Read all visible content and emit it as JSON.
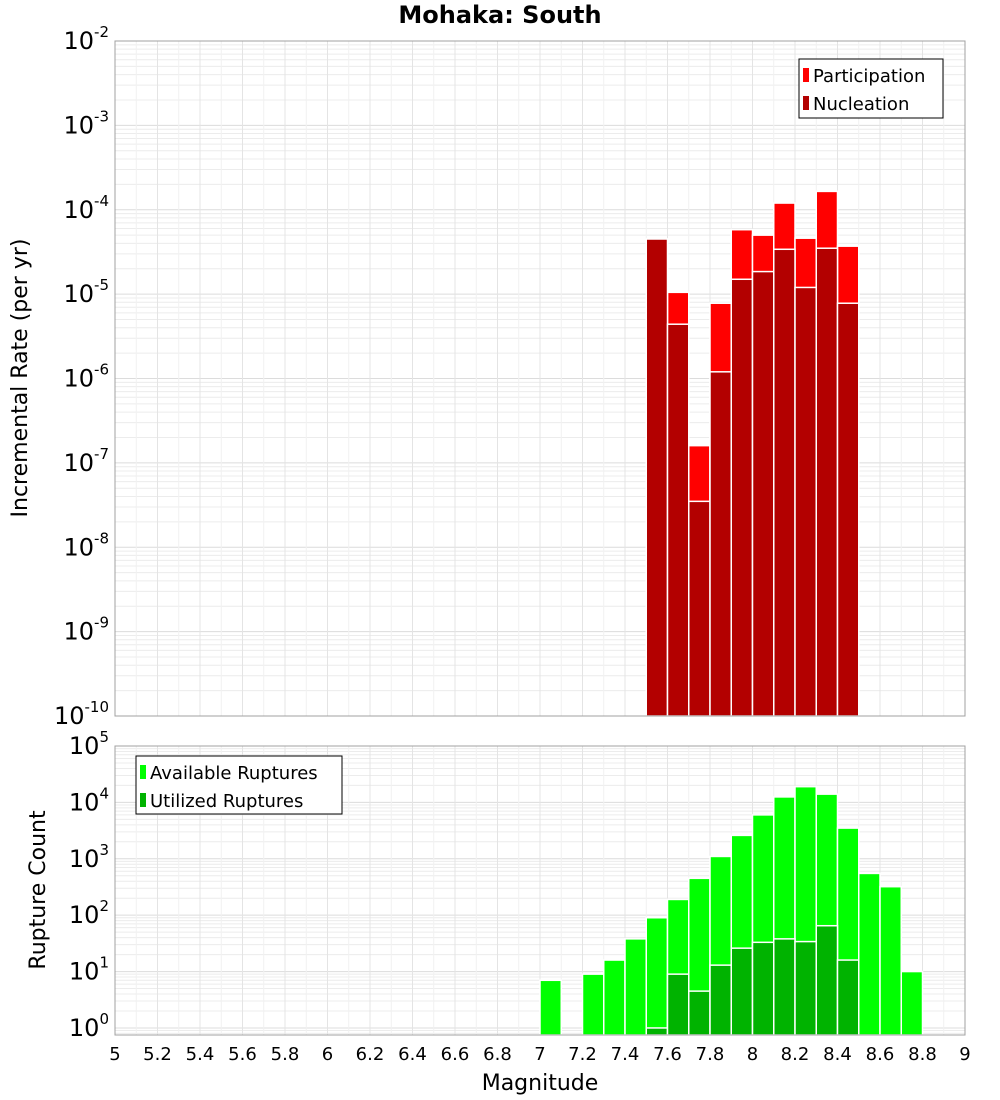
{
  "chart_data": [
    {
      "type": "bar",
      "title": "Mohaka: South",
      "xlabel": "",
      "ylabel": "Incremental Rate (per yr)",
      "yscale": "log",
      "ylim": [
        1e-10,
        0.01
      ],
      "xlim": [
        5,
        9
      ],
      "bin_width": 0.1,
      "grid": true,
      "legend_position": "top-right",
      "y_ticks": [
        {
          "base": "10",
          "exp": "-2"
        },
        {
          "base": "10",
          "exp": "-3"
        },
        {
          "base": "10",
          "exp": "-4"
        },
        {
          "base": "10",
          "exp": "-5"
        },
        {
          "base": "10",
          "exp": "-6"
        },
        {
          "base": "10",
          "exp": "-7"
        },
        {
          "base": "10",
          "exp": "-8"
        },
        {
          "base": "10",
          "exp": "-9"
        },
        {
          "base": "10",
          "exp": "-10"
        }
      ],
      "series": [
        {
          "name": "Participation",
          "color": "#ff0000",
          "x": [
            7.55,
            7.65,
            7.75,
            7.85,
            7.95,
            8.05,
            8.15,
            8.25,
            8.35,
            8.45
          ],
          "values": [
            4.5e-05,
            1.05e-05,
            1.6e-07,
            7.8e-06,
            5.8e-05,
            5e-05,
            0.00012,
            4.6e-05,
            0.000165,
            3.7e-05
          ]
        },
        {
          "name": "Nucleation",
          "color": "#b30000",
          "x": [
            7.55,
            7.65,
            7.75,
            7.85,
            7.95,
            8.05,
            8.15,
            8.25,
            8.35,
            8.45
          ],
          "values": [
            4.5e-05,
            4.4e-06,
            3.5e-08,
            1.2e-06,
            1.5e-05,
            1.85e-05,
            3.4e-05,
            1.2e-05,
            3.5e-05,
            7.8e-06
          ]
        }
      ]
    },
    {
      "type": "bar",
      "title": "",
      "xlabel": "Magnitude",
      "ylabel": "Rupture Count",
      "yscale": "log",
      "ylim": [
        0.75,
        100000.0
      ],
      "xlim": [
        5,
        9
      ],
      "bin_width": 0.1,
      "grid": true,
      "legend_position": "top-left",
      "x_ticks": [
        "5",
        "5.2",
        "5.4",
        "5.6",
        "5.8",
        "6",
        "6.2",
        "6.4",
        "6.6",
        "6.8",
        "7",
        "7.2",
        "7.4",
        "7.6",
        "7.8",
        "8",
        "8.2",
        "8.4",
        "8.6",
        "8.8",
        "9"
      ],
      "y_ticks": [
        {
          "base": "10",
          "exp": "5"
        },
        {
          "base": "10",
          "exp": "4"
        },
        {
          "base": "10",
          "exp": "3"
        },
        {
          "base": "10",
          "exp": "2"
        },
        {
          "base": "10",
          "exp": "1"
        },
        {
          "base": "10",
          "exp": "0"
        }
      ],
      "series": [
        {
          "name": "Available Ruptures",
          "color": "#00ff00",
          "x": [
            7.05,
            7.25,
            7.35,
            7.45,
            7.55,
            7.65,
            7.75,
            7.85,
            7.95,
            8.05,
            8.15,
            8.25,
            8.35,
            8.45,
            8.55,
            8.65,
            8.75
          ],
          "values": [
            7,
            9,
            16,
            38,
            90,
            190,
            450,
            1100,
            2600,
            6000,
            12500,
            19000,
            14000,
            3500,
            550,
            320,
            10
          ]
        },
        {
          "name": "Utilized Ruptures",
          "color": "#00b300",
          "x": [
            7.55,
            7.65,
            7.75,
            7.85,
            7.95,
            8.05,
            8.15,
            8.25,
            8.35,
            8.45
          ],
          "values": [
            1,
            9,
            4.5,
            13,
            26,
            33,
            38,
            34,
            65,
            16
          ]
        }
      ]
    }
  ]
}
